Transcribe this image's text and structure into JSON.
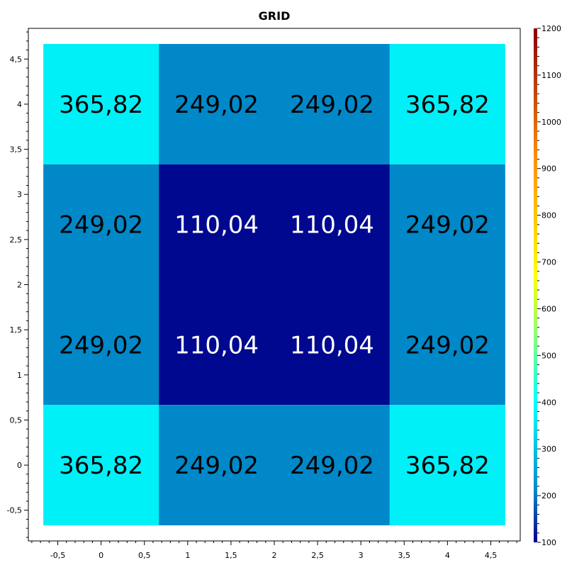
{
  "chart_data": {
    "type": "heatmap",
    "title": "GRID",
    "xlabel": "",
    "ylabel": "",
    "xlim": [
      -0.84,
      4.84
    ],
    "ylim": [
      -0.84,
      4.84
    ],
    "x_ticks": [
      "-0,5",
      "0",
      "0,5",
      "1",
      "1,5",
      "2",
      "2,5",
      "3",
      "3,5",
      "4",
      "4,5"
    ],
    "y_ticks": [
      "-0,5",
      "0",
      "0,5",
      "1",
      "1,5",
      "2",
      "2,5",
      "3",
      "3,5",
      "4",
      "4,5"
    ],
    "x_edges": [
      -0.667,
      0.667,
      2.0,
      3.333,
      4.667
    ],
    "y_edges": [
      -0.667,
      0.667,
      2.0,
      3.333,
      4.667
    ],
    "cell_centers": [
      0,
      1.333,
      2.667,
      4
    ],
    "rows_top_to_bottom": [
      [
        "365,82",
        "249,02",
        "249,02",
        "365,82"
      ],
      [
        "249,02",
        "110,04",
        "110,04",
        "249,02"
      ],
      [
        "249,02",
        "110,04",
        "110,04",
        "249,02"
      ],
      [
        "365,82",
        "249,02",
        "249,02",
        "365,82"
      ]
    ],
    "values_top_to_bottom": [
      [
        365.82,
        249.02,
        249.02,
        365.82
      ],
      [
        249.02,
        110.04,
        110.04,
        249.02
      ],
      [
        249.02,
        110.04,
        110.04,
        249.02
      ],
      [
        365.82,
        249.02,
        249.02,
        365.82
      ]
    ],
    "colorbar": {
      "min": 100,
      "max": 1200,
      "tick_labels": [
        "100",
        "200",
        "300",
        "400",
        "500",
        "600",
        "700",
        "800",
        "900",
        "1000",
        "1100",
        "1200"
      ],
      "colors": {
        "low": "#00008b",
        "mid_low": "#0088cc",
        "mid": "#00ffff",
        "mid_high": "#ffff00",
        "high": "#ff8c00",
        "max": "#8b0000"
      }
    },
    "cell_colors": {
      "365.82": "#00f0f8",
      "249.02": "#0088c8",
      "110.04": "#000890"
    },
    "legend": "right",
    "grid": false
  }
}
